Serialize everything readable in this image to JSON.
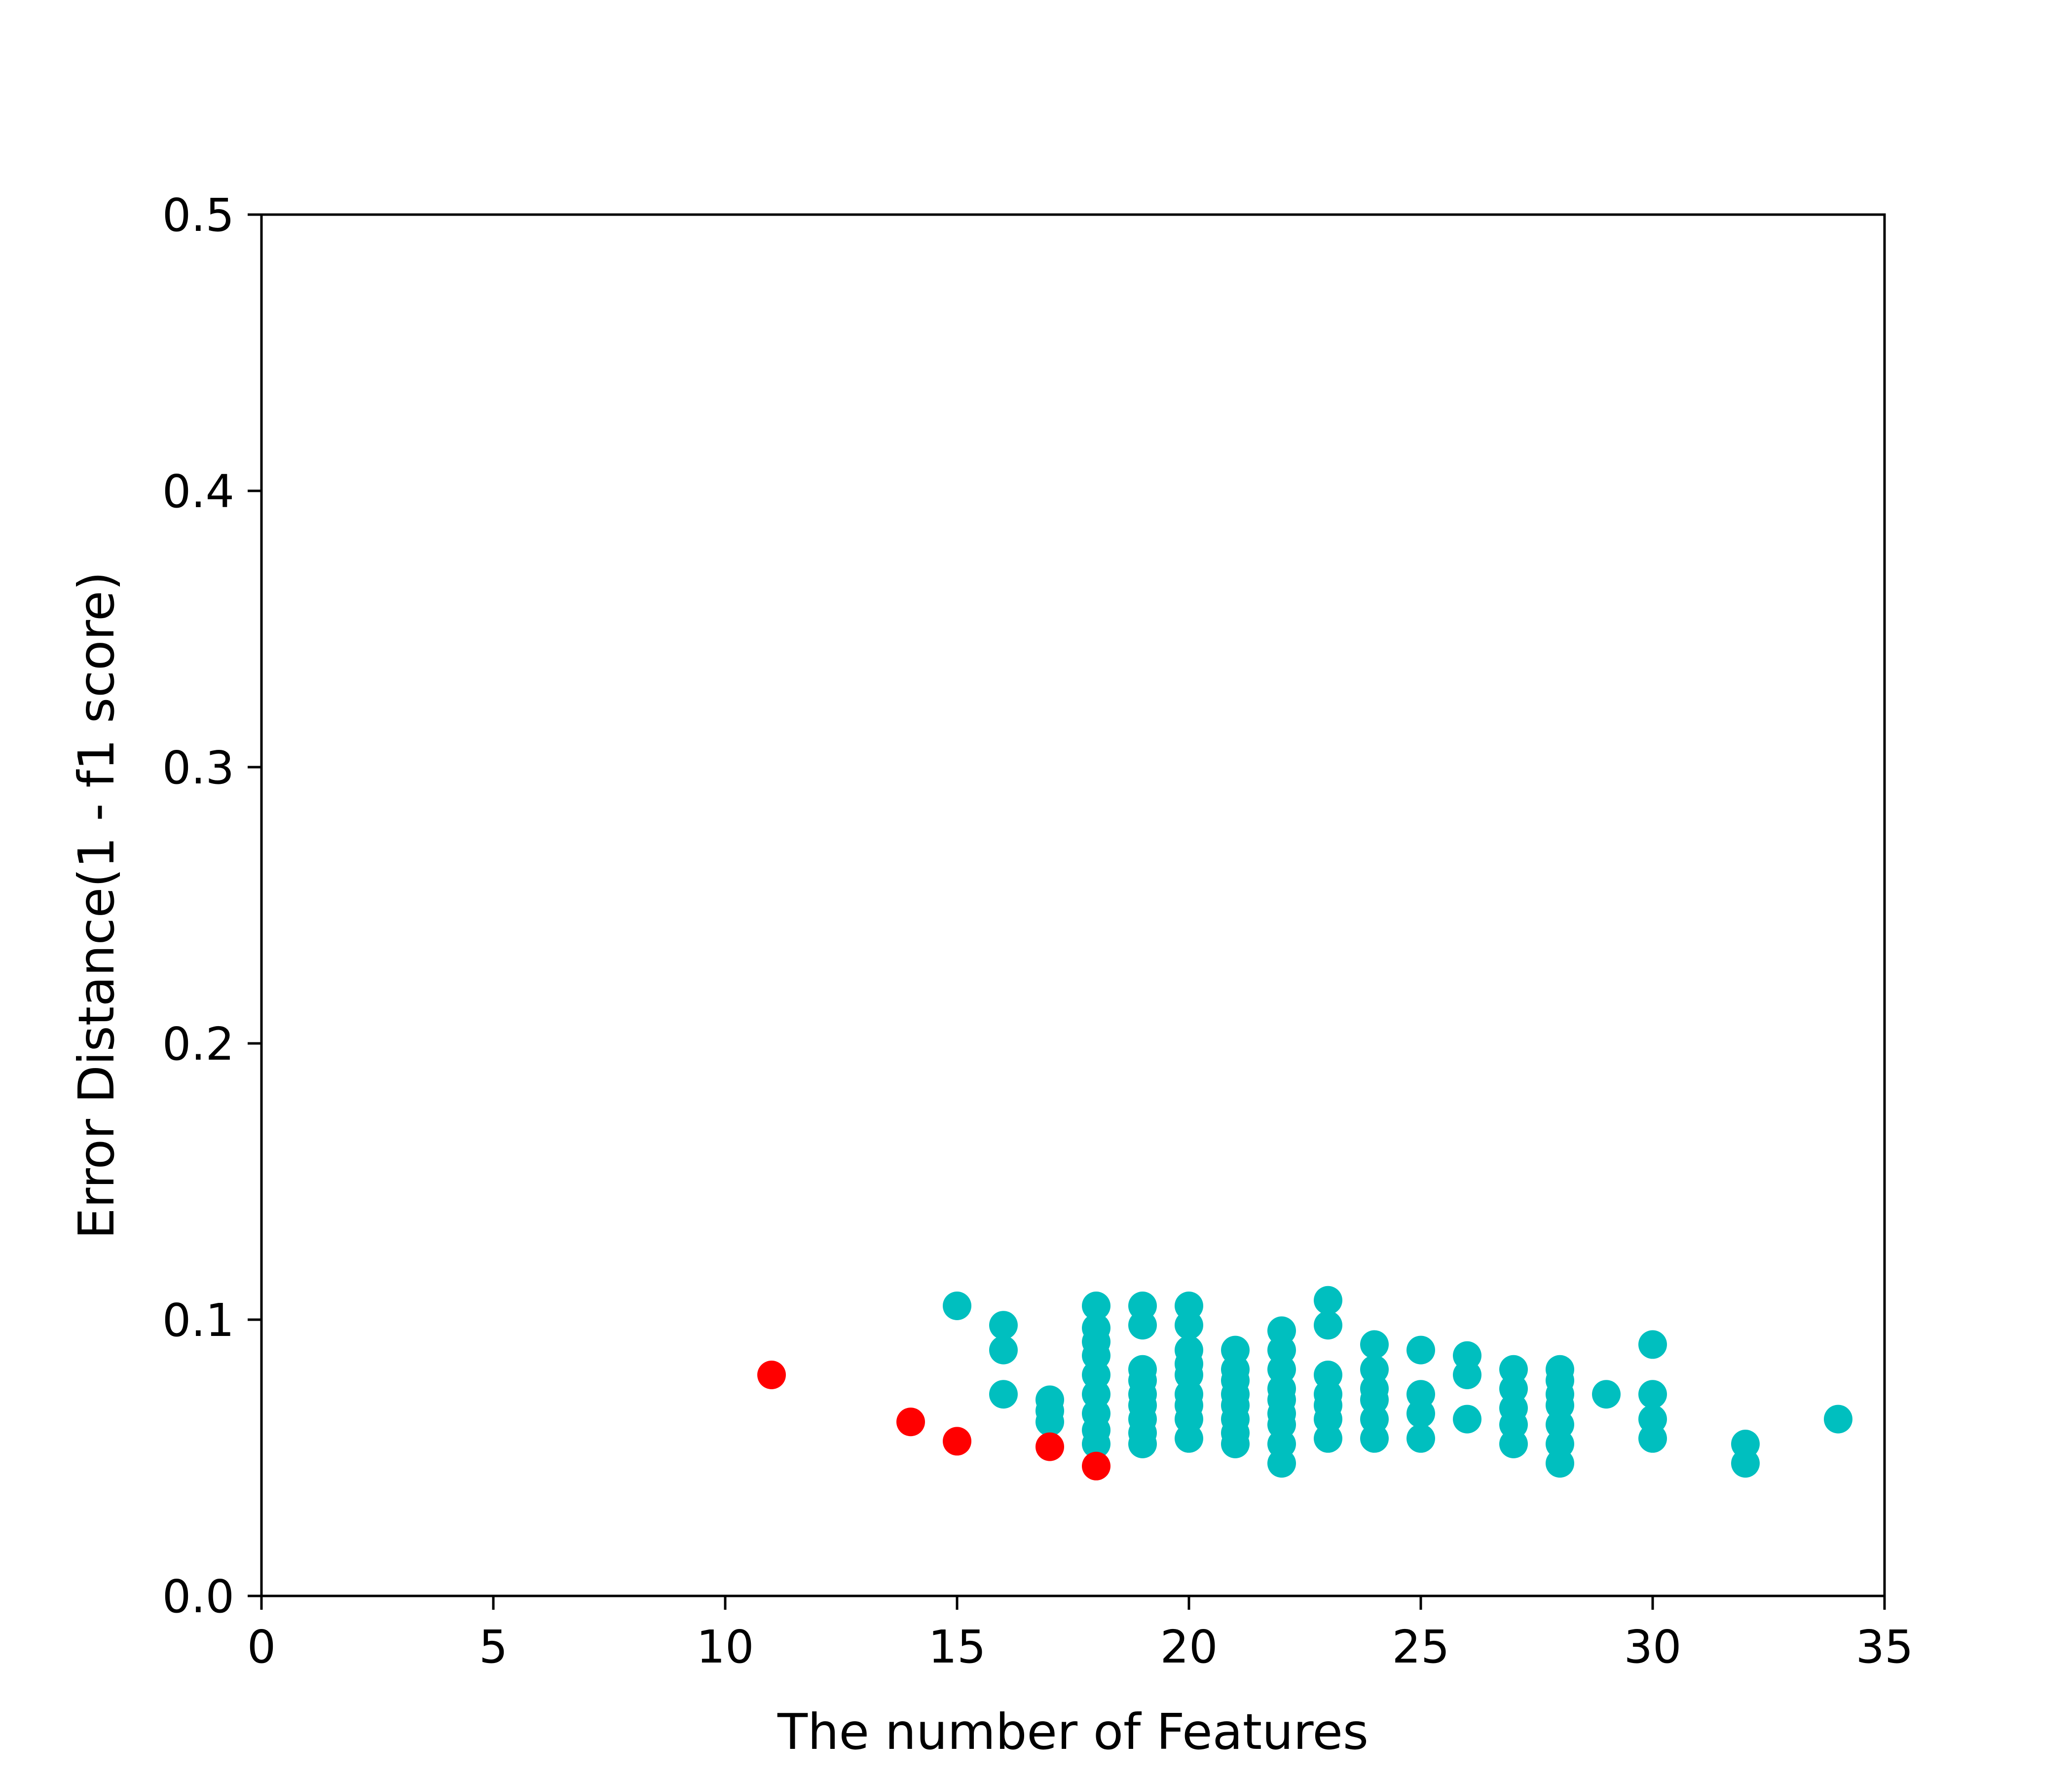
{
  "chart_data": {
    "type": "scatter",
    "xlabel": "The number of Features",
    "ylabel": "Error Distance(1 - f1 score)",
    "xlim": [
      0,
      35
    ],
    "ylim": [
      0.0,
      0.5
    ],
    "xticks": [
      "0",
      "5",
      "10",
      "15",
      "20",
      "25",
      "30",
      "35"
    ],
    "yticks": [
      "0.0",
      "0.1",
      "0.2",
      "0.3",
      "0.4",
      "0.5"
    ],
    "grid": false,
    "legend": "none",
    "series": [
      {
        "color": "#00bfbf",
        "points": [
          [
            15,
            0.105
          ],
          [
            16,
            0.098
          ],
          [
            16,
            0.089
          ],
          [
            16,
            0.073
          ],
          [
            17,
            0.071
          ],
          [
            17,
            0.067
          ],
          [
            17,
            0.063
          ],
          [
            18,
            0.105
          ],
          [
            18,
            0.097
          ],
          [
            18,
            0.092
          ],
          [
            18,
            0.087
          ],
          [
            18,
            0.08
          ],
          [
            18,
            0.073
          ],
          [
            18,
            0.066
          ],
          [
            18,
            0.06
          ],
          [
            18,
            0.055
          ],
          [
            19,
            0.105
          ],
          [
            19,
            0.098
          ],
          [
            19,
            0.082
          ],
          [
            19,
            0.078
          ],
          [
            19,
            0.073
          ],
          [
            19,
            0.069
          ],
          [
            19,
            0.064
          ],
          [
            19,
            0.059
          ],
          [
            19,
            0.055
          ],
          [
            20,
            0.105
          ],
          [
            20,
            0.098
          ],
          [
            20,
            0.089
          ],
          [
            20,
            0.084
          ],
          [
            20,
            0.08
          ],
          [
            20,
            0.073
          ],
          [
            20,
            0.069
          ],
          [
            20,
            0.064
          ],
          [
            20,
            0.057
          ],
          [
            21,
            0.089
          ],
          [
            21,
            0.082
          ],
          [
            21,
            0.078
          ],
          [
            21,
            0.073
          ],
          [
            21,
            0.069
          ],
          [
            21,
            0.064
          ],
          [
            21,
            0.059
          ],
          [
            21,
            0.055
          ],
          [
            22,
            0.096
          ],
          [
            22,
            0.089
          ],
          [
            22,
            0.082
          ],
          [
            22,
            0.075
          ],
          [
            22,
            0.071
          ],
          [
            22,
            0.066
          ],
          [
            22,
            0.062
          ],
          [
            22,
            0.055
          ],
          [
            22,
            0.048
          ],
          [
            23,
            0.107
          ],
          [
            23,
            0.098
          ],
          [
            23,
            0.08
          ],
          [
            23,
            0.073
          ],
          [
            23,
            0.069
          ],
          [
            23,
            0.064
          ],
          [
            23,
            0.057
          ],
          [
            24,
            0.091
          ],
          [
            24,
            0.082
          ],
          [
            24,
            0.075
          ],
          [
            24,
            0.071
          ],
          [
            24,
            0.064
          ],
          [
            24,
            0.057
          ],
          [
            25,
            0.089
          ],
          [
            25,
            0.073
          ],
          [
            25,
            0.066
          ],
          [
            25,
            0.057
          ],
          [
            26,
            0.087
          ],
          [
            26,
            0.08
          ],
          [
            26,
            0.064
          ],
          [
            27,
            0.082
          ],
          [
            27,
            0.075
          ],
          [
            27,
            0.068
          ],
          [
            27,
            0.062
          ],
          [
            27,
            0.055
          ],
          [
            28,
            0.082
          ],
          [
            28,
            0.078
          ],
          [
            28,
            0.073
          ],
          [
            28,
            0.069
          ],
          [
            28,
            0.062
          ],
          [
            28,
            0.055
          ],
          [
            28,
            0.048
          ],
          [
            29,
            0.073
          ],
          [
            30,
            0.091
          ],
          [
            30,
            0.073
          ],
          [
            30,
            0.064
          ],
          [
            30,
            0.057
          ],
          [
            32,
            0.055
          ],
          [
            32,
            0.048
          ],
          [
            34,
            0.064
          ]
        ]
      },
      {
        "color": "#ff0000",
        "points": [
          [
            11,
            0.08
          ],
          [
            14,
            0.063
          ],
          [
            15,
            0.056
          ],
          [
            17,
            0.054
          ],
          [
            18,
            0.047
          ]
        ]
      }
    ]
  }
}
